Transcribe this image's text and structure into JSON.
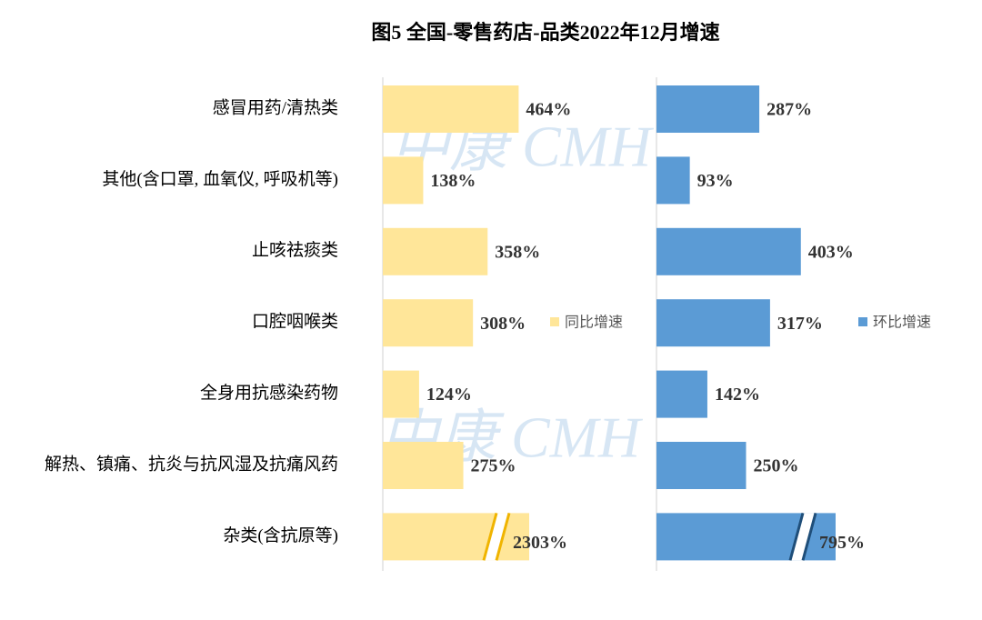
{
  "chart_data": {
    "type": "bar",
    "orientation": "horizontal",
    "title": "图5 全国-零售药店-品类2022年12月增速",
    "watermark": "中康 CMH",
    "categories": [
      "感冒用药/清热类",
      "其他(含口罩, 血氧仪, 呼吸机等)",
      "止咳祛痰类",
      "口腔咽喉类",
      "全身用抗感染药物",
      "解热、镇痛、抗炎与抗风湿及抗痛风药",
      "杂类(含抗原等)"
    ],
    "series": [
      {
        "name": "同比增速",
        "color": "#FFE699",
        "break_color": "#F0B400",
        "xlim": [
          0,
          500
        ],
        "axis_break": true,
        "values": [
          464,
          138,
          358,
          308,
          124,
          275,
          2303
        ],
        "value_labels": [
          "464%",
          "138%",
          "358%",
          "308%",
          "124%",
          "275%",
          "2303%"
        ]
      },
      {
        "name": "环比增速",
        "color": "#5B9BD5",
        "break_color": "#1F4E79",
        "xlim": [
          0,
          500
        ],
        "axis_break": true,
        "values": [
          287,
          93,
          403,
          317,
          142,
          250,
          795
        ],
        "value_labels": [
          "287%",
          "93%",
          "403%",
          "317%",
          "142%",
          "250%",
          "795%"
        ]
      }
    ]
  }
}
